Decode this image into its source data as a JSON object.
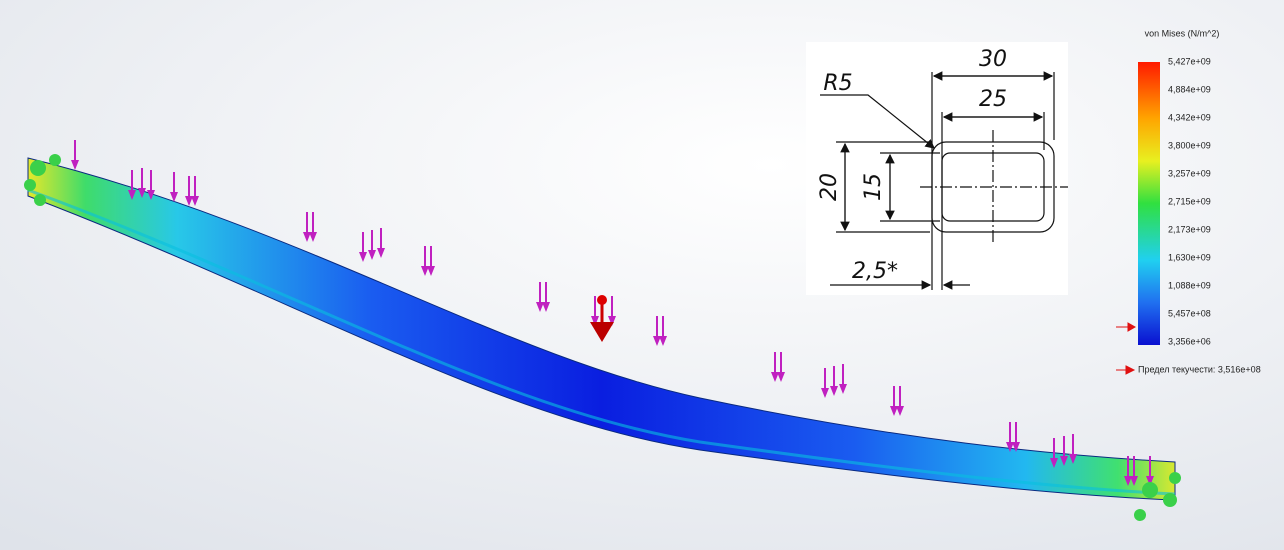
{
  "section": {
    "dims": [
      "30",
      "25",
      "R5",
      "20",
      "15",
      "2,5*"
    ]
  },
  "legend": {
    "title": "von Mises (N/m^2)",
    "labels": [
      "5,427e+09",
      "4,884e+09",
      "4,342e+09",
      "3,800e+09",
      "3,257e+09",
      "2,715e+09",
      "2,173e+09",
      "1,630e+09",
      "1,088e+09",
      "5,457e+08",
      "3,356e+06"
    ],
    "yield_label": "Предел текучести: 3,516e+08"
  }
}
